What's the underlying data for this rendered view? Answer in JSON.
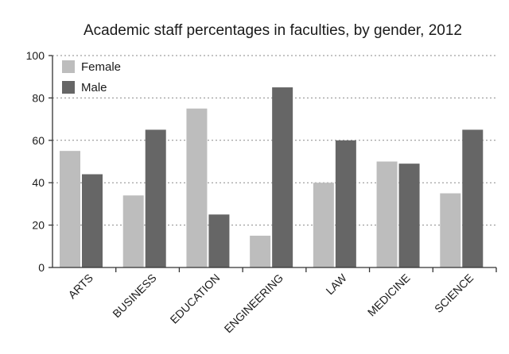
{
  "chart_data": {
    "type": "bar",
    "title": "Academic staff percentages in faculties, by gender, 2012",
    "categories": [
      "ARTS",
      "BUSINESS",
      "EDUCATION",
      "ENGINEERING",
      "LAW",
      "MEDICINE",
      "SCIENCE"
    ],
    "series": [
      {
        "name": "Female",
        "color": "#bdbdbd",
        "values": [
          55,
          34,
          75,
          15,
          40,
          50,
          35
        ]
      },
      {
        "name": "Male",
        "color": "#666666",
        "values": [
          44,
          65,
          25,
          85,
          60,
          49,
          65
        ]
      }
    ],
    "yticks": [
      "0",
      "20",
      "40",
      "60",
      "80",
      "100"
    ],
    "ylim": [
      0,
      100
    ],
    "xlabel": "",
    "ylabel": "",
    "grid": true,
    "legend_position": "top-left"
  }
}
